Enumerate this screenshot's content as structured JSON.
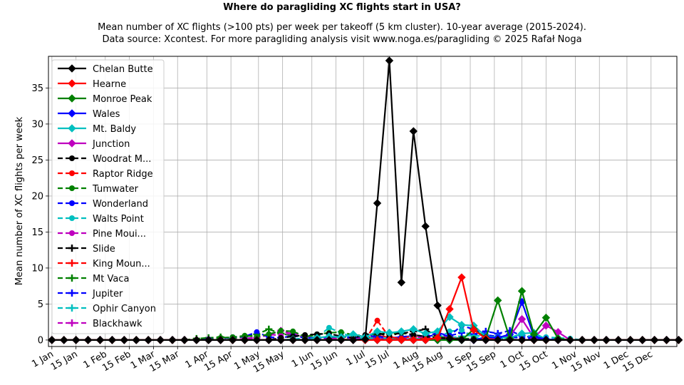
{
  "header": {
    "title": "Where do paragliding XC flights start in USA?",
    "subtitle_line1": "Mean number of XC flights (>100 pts) per week per takeoff (5 km cluster). 10-year average (2015-2024).",
    "subtitle_line2": "Data source: Xcontest. For more paragliding analysis visit www.noga.es/paragliding © 2025 Rafał Noga"
  },
  "chart_data": {
    "type": "line",
    "title": "Where do paragliding XC flights start in USA?",
    "xlabel": "",
    "ylabel": "Mean number of XC flights per week",
    "ylim": [
      -0.9,
      39.4
    ],
    "xlim": [
      -2,
      363
    ],
    "grid": true,
    "legend_position": "upper-left",
    "x_unit": "day of year",
    "x_ticks": [
      {
        "x": 0,
        "label": "1 Jan"
      },
      {
        "x": 14,
        "label": "15 Jan"
      },
      {
        "x": 31,
        "label": "1 Feb"
      },
      {
        "x": 45,
        "label": "15 Feb"
      },
      {
        "x": 59,
        "label": "1 Mar"
      },
      {
        "x": 73,
        "label": "15 Mar"
      },
      {
        "x": 90,
        "label": "1 Apr"
      },
      {
        "x": 104,
        "label": "15 Apr"
      },
      {
        "x": 120,
        "label": "1 May"
      },
      {
        "x": 134,
        "label": "15 May"
      },
      {
        "x": 151,
        "label": "1 Jun"
      },
      {
        "x": 165,
        "label": "15 Jun"
      },
      {
        "x": 181,
        "label": "1 Jul"
      },
      {
        "x": 195,
        "label": "15 Jul"
      },
      {
        "x": 212,
        "label": "1 Aug"
      },
      {
        "x": 226,
        "label": "15 Aug"
      },
      {
        "x": 243,
        "label": "1 Sep"
      },
      {
        "x": 257,
        "label": "15 Sep"
      },
      {
        "x": 273,
        "label": "1 Oct"
      },
      {
        "x": 287,
        "label": "15 Oct"
      },
      {
        "x": 304,
        "label": "1 Nov"
      },
      {
        "x": 318,
        "label": "15 Nov"
      },
      {
        "x": 334,
        "label": "1 Dec"
      },
      {
        "x": 348,
        "label": "15 Dec"
      }
    ],
    "y_ticks": [
      0,
      5,
      10,
      15,
      20,
      25,
      30,
      35
    ],
    "x_weeks": [
      0,
      7,
      14,
      21,
      28,
      35,
      42,
      49,
      56,
      63,
      70,
      77,
      84,
      91,
      98,
      105,
      112,
      119,
      126,
      133,
      140,
      147,
      154,
      161,
      168,
      175,
      182,
      189,
      196,
      203,
      210,
      217,
      224,
      231,
      238,
      245,
      252,
      259,
      266,
      273,
      280,
      287,
      294,
      301,
      308,
      315,
      322,
      329,
      336,
      343,
      350,
      357,
      364
    ],
    "series": [
      {
        "name": "Chelan Butte",
        "color": "#000000",
        "linestyle": "solid",
        "marker": "diamond",
        "values": [
          0,
          0,
          0,
          0,
          0,
          0,
          0,
          0,
          0,
          0,
          0,
          0,
          0,
          0,
          0,
          0,
          0,
          0,
          0,
          0,
          0,
          0,
          0,
          0,
          0,
          0,
          0.1,
          19.0,
          38.8,
          8.0,
          29.0,
          15.8,
          4.8,
          0.2,
          0,
          0,
          0,
          0,
          0,
          0,
          0,
          0,
          0,
          0,
          0,
          0,
          0,
          0,
          0,
          0,
          0,
          0,
          0
        ]
      },
      {
        "name": "Hearne",
        "color": "#ff0000",
        "linestyle": "solid",
        "marker": "diamond",
        "values": [
          0,
          0,
          0,
          0,
          0,
          0,
          0,
          0,
          0,
          0,
          0,
          0,
          0,
          0,
          0,
          0,
          0,
          0,
          0,
          0,
          0,
          0,
          0,
          0,
          0,
          0,
          0,
          0,
          0,
          0,
          0,
          0,
          0.3,
          4.3,
          8.7,
          1.4,
          0.2,
          0,
          0,
          0,
          0,
          0,
          0,
          0,
          0,
          0,
          0,
          0,
          0,
          0,
          0,
          0,
          0
        ]
      },
      {
        "name": "Monroe Peak",
        "color": "#008000",
        "linestyle": "solid",
        "marker": "diamond",
        "values": [
          0,
          0,
          0,
          0,
          0,
          0,
          0,
          0,
          0,
          0,
          0,
          0,
          0,
          0,
          0,
          0,
          0,
          0,
          0,
          0,
          0,
          0,
          0,
          0,
          0,
          0,
          0,
          0,
          0,
          0,
          0,
          0,
          0,
          0,
          0,
          1.5,
          0.3,
          5.5,
          0.2,
          6.8,
          0.8,
          3.1,
          0.2,
          0,
          0,
          0,
          0,
          0,
          0,
          0,
          0,
          0,
          0
        ]
      },
      {
        "name": "Wales",
        "color": "#0000ff",
        "linestyle": "solid",
        "marker": "diamond",
        "values": [
          0,
          0,
          0,
          0,
          0,
          0,
          0,
          0,
          0,
          0,
          0,
          0,
          0,
          0,
          0,
          0,
          0,
          0,
          0,
          0,
          0,
          0,
          0,
          0,
          0,
          0,
          0,
          0,
          0,
          0,
          0,
          0,
          0,
          0,
          0,
          0,
          0.4,
          0.3,
          0.8,
          5.3,
          0.5,
          0.1,
          0,
          0,
          0,
          0,
          0,
          0,
          0,
          0,
          0,
          0,
          0
        ]
      },
      {
        "name": "Mt. Baldy",
        "color": "#00bfbf",
        "linestyle": "solid",
        "marker": "diamond",
        "values": [
          0,
          0,
          0,
          0,
          0,
          0,
          0,
          0,
          0,
          0,
          0,
          0,
          0,
          0,
          0,
          0,
          0,
          0,
          0,
          0,
          0.1,
          0,
          0.3,
          0.5,
          0.4,
          0.8,
          0.4,
          1.2,
          1.0,
          1.2,
          1.5,
          0.9,
          1.2,
          3.2,
          2.1,
          2.0,
          0.5,
          0.4,
          0.3,
          0.9,
          1.0,
          0.1,
          0,
          0,
          0,
          0,
          0,
          0,
          0,
          0,
          0,
          0,
          0
        ]
      },
      {
        "name": "Junction",
        "color": "#bf00bf",
        "linestyle": "solid",
        "marker": "diamond",
        "values": [
          0,
          0,
          0,
          0,
          0,
          0,
          0,
          0,
          0,
          0,
          0,
          0,
          0,
          0,
          0,
          0,
          0,
          0,
          0,
          0,
          0,
          0,
          0,
          0,
          0,
          0,
          0,
          0,
          0,
          0,
          0,
          0,
          0,
          0,
          0,
          0,
          0,
          0.4,
          0.5,
          2.9,
          0.3,
          2.0,
          1.1,
          0,
          0,
          0,
          0,
          0,
          0,
          0,
          0,
          0,
          0
        ]
      },
      {
        "name": "Woodrat M...",
        "color": "#000000",
        "linestyle": "dashed",
        "marker": "circle",
        "values": [
          0,
          0,
          0,
          0,
          0,
          0,
          0,
          0,
          0,
          0,
          0,
          0,
          0,
          0,
          0,
          0,
          0,
          0,
          0,
          0.3,
          0.5,
          0.7,
          0.8,
          0.9,
          0.5,
          0.3,
          0.7,
          1.0,
          0.5,
          1.1,
          0.7,
          0.5,
          0.3,
          0.2,
          0.1,
          0,
          0,
          0,
          0,
          0,
          0,
          0,
          0,
          0,
          0,
          0,
          0,
          0,
          0,
          0,
          0,
          0,
          0
        ]
      },
      {
        "name": "Raptor Ridge",
        "color": "#ff0000",
        "linestyle": "dashed",
        "marker": "circle",
        "values": [
          0,
          0,
          0,
          0,
          0,
          0,
          0,
          0,
          0,
          0,
          0,
          0,
          0,
          0,
          0,
          0,
          0,
          0,
          0,
          0,
          0,
          0,
          0,
          0,
          0,
          0,
          0,
          2.7,
          0.4,
          0.2,
          0.1,
          0,
          0,
          0,
          0,
          0,
          0,
          0,
          0,
          0,
          0,
          0,
          0,
          0,
          0,
          0,
          0,
          0,
          0,
          0,
          0,
          0,
          0
        ]
      },
      {
        "name": "Tumwater",
        "color": "#008000",
        "linestyle": "dashed",
        "marker": "circle",
        "values": [
          0,
          0,
          0,
          0,
          0,
          0,
          0,
          0,
          0,
          0,
          0,
          0,
          0,
          0,
          0.3,
          0.4,
          0.6,
          0.5,
          0.8,
          1.3,
          1.2,
          0.5,
          0.8,
          1.0,
          1.1,
          0.7,
          0.6,
          0.9,
          0.8,
          1.0,
          0.7,
          0.5,
          0.4,
          0.3,
          0.2,
          0.2,
          0.1,
          0,
          0,
          0,
          0,
          0,
          0,
          0,
          0,
          0,
          0,
          0,
          0,
          0,
          0,
          0,
          0
        ]
      },
      {
        "name": "Wonderland",
        "color": "#0000ff",
        "linestyle": "dashed",
        "marker": "circle",
        "values": [
          0,
          0,
          0,
          0,
          0,
          0,
          0,
          0,
          0,
          0,
          0,
          0,
          0,
          0.1,
          0.2,
          0.4,
          0.5,
          1.1,
          0.4,
          0.3,
          0.6,
          0.3,
          0.2,
          0.4,
          0.5,
          0.3,
          0.6,
          0.5,
          0.3,
          0.4,
          0.7,
          0.5,
          1.0,
          0.6,
          2.0,
          1.5,
          0.7,
          0.5,
          0.4,
          0.3,
          0.2,
          0.1,
          0.1,
          0,
          0,
          0,
          0,
          0,
          0,
          0,
          0,
          0,
          0
        ]
      },
      {
        "name": "Walts Point",
        "color": "#00bfbf",
        "linestyle": "dashed",
        "marker": "circle",
        "values": [
          0,
          0,
          0,
          0,
          0,
          0,
          0,
          0,
          0,
          0,
          0,
          0,
          0,
          0,
          0,
          0,
          0,
          0,
          0,
          0,
          0.1,
          0.3,
          0.4,
          1.7,
          1.0,
          0.4,
          0.2,
          0.3,
          0.2,
          0.1,
          0.2,
          0.1,
          0.2,
          1.2,
          1.4,
          0.4,
          0.2,
          0.1,
          0.3,
          0.5,
          0.6,
          0.4,
          0.3,
          0.2,
          0,
          0,
          0,
          0,
          0,
          0,
          0,
          0,
          0
        ]
      },
      {
        "name": "Pine Moui...",
        "color": "#bf00bf",
        "linestyle": "dashed",
        "marker": "circle",
        "values": [
          0,
          0,
          0,
          0,
          0,
          0,
          0,
          0,
          0,
          0,
          0,
          0,
          0,
          0,
          0,
          0,
          0.2,
          0.4,
          0.8,
          0.6,
          1.1,
          0.4,
          0.3,
          0.2,
          0.2,
          0.1,
          0.3,
          0.2,
          0.4,
          0.2,
          0.3,
          0.5,
          0.2,
          0.1,
          0,
          0,
          0,
          0,
          0,
          0,
          0,
          0,
          0,
          0,
          0,
          0,
          0,
          0,
          0,
          0,
          0,
          0,
          0
        ]
      },
      {
        "name": "Slide",
        "color": "#000000",
        "linestyle": "dashed",
        "marker": "plus",
        "values": [
          0,
          0,
          0,
          0,
          0,
          0,
          0,
          0,
          0,
          0,
          0,
          0,
          0,
          0,
          0,
          0,
          0,
          0,
          0,
          0,
          0,
          0,
          0,
          0,
          0,
          0,
          0,
          0.8,
          1.0,
          0.9,
          1.2,
          1.5,
          0.4,
          0.2,
          0.1,
          0,
          0,
          0,
          0,
          0,
          0,
          0,
          0,
          0,
          0,
          0,
          0,
          0,
          0,
          0,
          0,
          0,
          0
        ]
      },
      {
        "name": "King Moun...",
        "color": "#ff0000",
        "linestyle": "dashed",
        "marker": "plus",
        "values": [
          0,
          0,
          0,
          0,
          0,
          0,
          0,
          0,
          0,
          0,
          0,
          0,
          0,
          0,
          0,
          0,
          0,
          0,
          0,
          0,
          0,
          0,
          0,
          0,
          0,
          0.2,
          0.3,
          0.6,
          0.4,
          0.3,
          0.5,
          0.2,
          0.2,
          0.3,
          0.1,
          0,
          0,
          0,
          0,
          0,
          0,
          0,
          0,
          0,
          0,
          0,
          0,
          0,
          0,
          0,
          0,
          0,
          0
        ]
      },
      {
        "name": "Mt Vaca",
        "color": "#008000",
        "linestyle": "dashed",
        "marker": "plus",
        "values": [
          0,
          0,
          0,
          0,
          0,
          0,
          0,
          0,
          0,
          0,
          0,
          0,
          0.2,
          0.3,
          0.4,
          0.2,
          0.5,
          0.8,
          1.5,
          0.9,
          0.6,
          0.5,
          0.4,
          0.3,
          0.3,
          0.2,
          0.4,
          0.2,
          0.3,
          0.2,
          0.1,
          0.1,
          0,
          0,
          0,
          0,
          0,
          0,
          0,
          0,
          0,
          0,
          0,
          0,
          0,
          0,
          0,
          0,
          0,
          0,
          0,
          0,
          0
        ]
      },
      {
        "name": "Jupiter",
        "color": "#0000ff",
        "linestyle": "dashed",
        "marker": "plus",
        "values": [
          0,
          0,
          0,
          0,
          0,
          0,
          0,
          0,
          0,
          0,
          0,
          0,
          0,
          0,
          0,
          0,
          0,
          0,
          0,
          0,
          0,
          0,
          0,
          0,
          0,
          0,
          0,
          0,
          0.2,
          0.4,
          0.6,
          0.5,
          0.7,
          0.6,
          1.0,
          0.8,
          1.2,
          0.9,
          1.3,
          0.6,
          0.3,
          0.1,
          0,
          0,
          0,
          0,
          0,
          0,
          0,
          0,
          0,
          0,
          0
        ]
      },
      {
        "name": "Ophir Canyon",
        "color": "#00bfbf",
        "linestyle": "dashed",
        "marker": "plus",
        "values": [
          0,
          0,
          0,
          0,
          0,
          0,
          0,
          0,
          0,
          0,
          0,
          0,
          0,
          0,
          0,
          0,
          0,
          0,
          0,
          0,
          0,
          0,
          0,
          0,
          0,
          0,
          0,
          0,
          0,
          0,
          0,
          0,
          0.1,
          0.3,
          0.5,
          0.7,
          0.4,
          0.2,
          0.1,
          0,
          0,
          0,
          0,
          0,
          0,
          0,
          0,
          0,
          0,
          0,
          0,
          0,
          0
        ]
      },
      {
        "name": "Blackhawk",
        "color": "#bf00bf",
        "linestyle": "dashed",
        "marker": "plus",
        "values": [
          0,
          0,
          0,
          0,
          0,
          0,
          0,
          0,
          0,
          0,
          0,
          0,
          0,
          0,
          0,
          0,
          0,
          0.3,
          0.7,
          1.3,
          0.8,
          0.5,
          0.3,
          0.2,
          0.4,
          0.3,
          0.2,
          0.4,
          0.3,
          0.2,
          0.1,
          0.2,
          0.3,
          0.5,
          0.2,
          0.1,
          0,
          0,
          0,
          0,
          0,
          0,
          0,
          0,
          0,
          0,
          0,
          0,
          0,
          0,
          0,
          0,
          0
        ]
      }
    ]
  }
}
